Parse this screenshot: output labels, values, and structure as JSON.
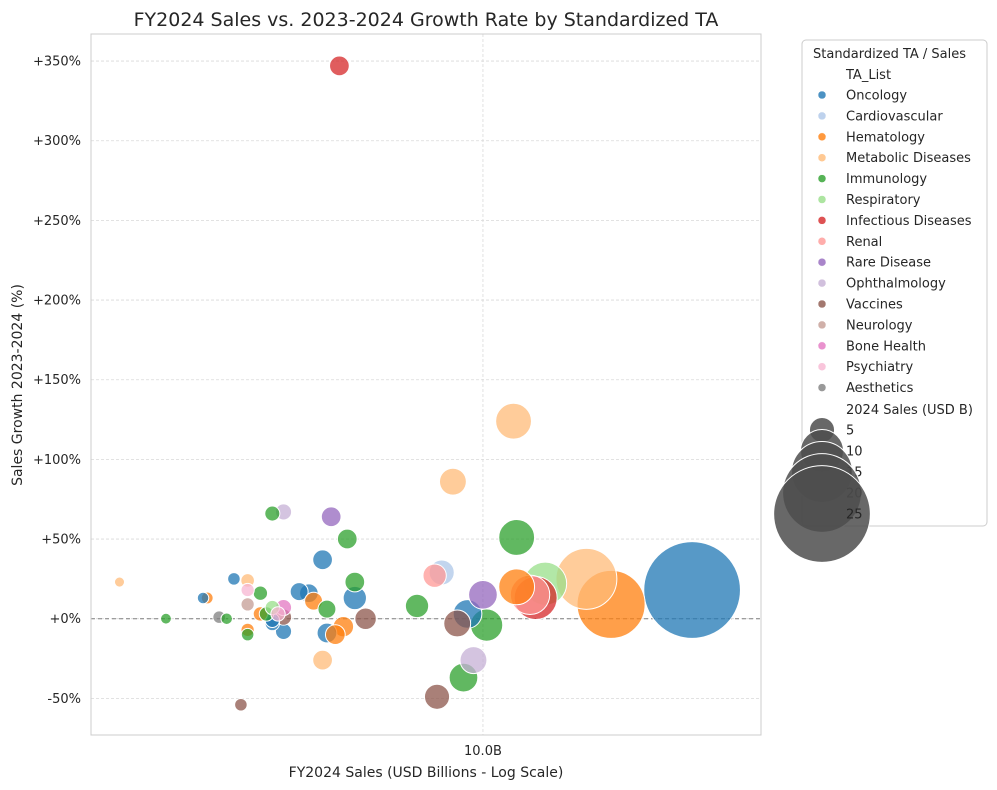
{
  "chart_data": {
    "type": "scatter",
    "title": "FY2024 Sales vs. 2023-2024 Growth Rate by Standardized TA",
    "xlabel": "FY2024 Sales (USD Billions - Log Scale)",
    "ylabel": "Sales Growth 2023-2024 (%)",
    "x_scale": "log",
    "xlim": [
      1.2,
      45
    ],
    "ylim": [
      -73,
      367
    ],
    "x_ticks": [
      {
        "value": 10,
        "label": "10.0B"
      }
    ],
    "y_ticks": [
      {
        "value": -50,
        "label": "-50%"
      },
      {
        "value": 0,
        "label": "+0%"
      },
      {
        "value": 50,
        "label": "+50%"
      },
      {
        "value": 100,
        "label": "+100%"
      },
      {
        "value": 150,
        "label": "+150%"
      },
      {
        "value": 200,
        "label": "+200%"
      },
      {
        "value": 250,
        "label": "+250%"
      },
      {
        "value": 300,
        "label": "+300%"
      },
      {
        "value": 350,
        "label": "+350%"
      }
    ],
    "grid": true,
    "reference_line_y": 0,
    "legend": {
      "title": "Standardized TA / Sales",
      "hue_title": "TA_List",
      "size_title": "2024 Sales (USD B)",
      "size_values": [
        5,
        10,
        15,
        20,
        25
      ],
      "placement": "outside right"
    },
    "series": [
      {
        "name": "Oncology",
        "color": "#1f77b4",
        "points": [
          [
            2.2,
            13,
            1.2
          ],
          [
            2.6,
            25,
            1.5
          ],
          [
            3.2,
            -3,
            2.0
          ],
          [
            3.2,
            -1,
            2.0
          ],
          [
            3.4,
            -8,
            2.5
          ],
          [
            3.7,
            17,
            3.0
          ],
          [
            3.9,
            16,
            3.2
          ],
          [
            4.2,
            37,
            3.5
          ],
          [
            4.3,
            -9,
            3.5
          ],
          [
            5.0,
            13,
            4.5
          ],
          [
            9.2,
            3,
            6.0
          ],
          [
            31,
            18,
            25.0
          ]
        ]
      },
      {
        "name": "Cardiovascular",
        "color": "#aec7e8",
        "points": [
          [
            8.0,
            29,
            5.0
          ]
        ]
      },
      {
        "name": "Hematology",
        "color": "#ff7f0e",
        "points": [
          [
            2.25,
            13,
            1.3
          ],
          [
            2.8,
            -7,
            1.7
          ],
          [
            3.0,
            3,
            2.0
          ],
          [
            4.0,
            11,
            3.0
          ],
          [
            4.5,
            -10,
            3.5
          ],
          [
            4.7,
            -5,
            3.7
          ],
          [
            12,
            20,
            8.0
          ],
          [
            20,
            9,
            17.0
          ]
        ]
      },
      {
        "name": "Metabolic Diseases",
        "color": "#ffbb78",
        "points": [
          [
            1.4,
            23,
            0.8
          ],
          [
            2.8,
            24,
            1.8
          ],
          [
            4.2,
            -26,
            3.5
          ],
          [
            8.5,
            86,
            5.5
          ],
          [
            11.8,
            124,
            8.0
          ],
          [
            17.5,
            25,
            15.0
          ]
        ]
      },
      {
        "name": "Immunology",
        "color": "#2ca02c",
        "points": [
          [
            1.8,
            0,
            1.0
          ],
          [
            2.5,
            0,
            1.2
          ],
          [
            2.8,
            -10,
            1.5
          ],
          [
            3.0,
            16,
            2.0
          ],
          [
            3.1,
            3,
            2.0
          ],
          [
            3.2,
            66,
            2.2
          ],
          [
            4.3,
            6,
            3.0
          ],
          [
            4.8,
            50,
            3.5
          ],
          [
            5.0,
            23,
            3.5
          ],
          [
            7.0,
            8,
            4.5
          ],
          [
            9.0,
            -37,
            6.0
          ],
          [
            10.2,
            -4,
            7.0
          ],
          [
            12,
            51,
            8.0
          ]
        ]
      },
      {
        "name": "Respiratory",
        "color": "#98df8a",
        "points": [
          [
            3.2,
            7,
            2.0
          ],
          [
            14,
            22,
            10.0
          ]
        ]
      },
      {
        "name": "Infectious Diseases",
        "color": "#d62728",
        "points": [
          [
            4.6,
            347,
            3.5
          ],
          [
            13.3,
            13,
            10.0
          ]
        ]
      },
      {
        "name": "Renal",
        "color": "#ff9896",
        "points": [
          [
            7.7,
            27,
            4.5
          ],
          [
            12.9,
            15,
            9.0
          ]
        ]
      },
      {
        "name": "Rare Disease",
        "color": "#9467bd",
        "points": [
          [
            4.4,
            64,
            3.5
          ],
          [
            10.0,
            15,
            6.0
          ]
        ]
      },
      {
        "name": "Ophthalmology",
        "color": "#c5b0d5",
        "points": [
          [
            3.4,
            67,
            2.5
          ],
          [
            9.5,
            -26,
            5.5
          ]
        ]
      },
      {
        "name": "Vaccines",
        "color": "#8c564b",
        "points": [
          [
            2.7,
            -54,
            1.5
          ],
          [
            3.4,
            1,
            2.5
          ],
          [
            5.3,
            0,
            4.0
          ],
          [
            7.8,
            -49,
            5.0
          ],
          [
            8.7,
            -3,
            5.5
          ]
        ]
      },
      {
        "name": "Neurology",
        "color": "#c49c94",
        "points": [
          [
            2.8,
            9,
            1.7
          ]
        ]
      },
      {
        "name": "Bone Health",
        "color": "#e377c2",
        "points": [
          [
            3.4,
            7,
            2.5
          ]
        ]
      },
      {
        "name": "Psychiatry",
        "color": "#f7b6d2",
        "points": [
          [
            2.8,
            18,
            1.7
          ],
          [
            3.3,
            3,
            2.0
          ]
        ]
      },
      {
        "name": "Aesthetics",
        "color": "#7f7f7f",
        "points": [
          [
            2.4,
            1,
            1.5
          ]
        ]
      }
    ]
  }
}
